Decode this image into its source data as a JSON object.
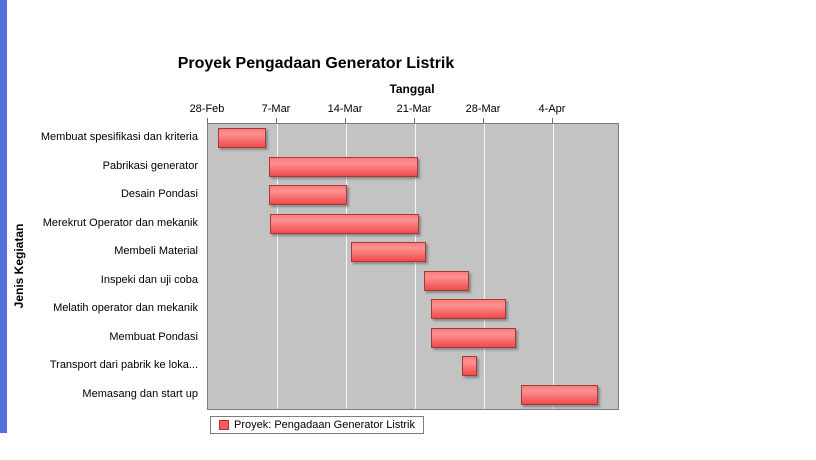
{
  "window": {
    "left_strip_color": "#5272d9"
  },
  "chart": {
    "title": "Proyek Pengadaan Generator Listrik",
    "xlabel": "Tanggal",
    "ylabel": "Jenis Kegiatan",
    "legend": "Proyek: Pengadaan Generator Listrik"
  },
  "chart_data": {
    "type": "gantt",
    "title": "Proyek Pengadaan Generator Listrik",
    "xlabel": "Tanggal",
    "ylabel": "Jenis Kegiatan",
    "legend_position": "bottom",
    "series_name": "Proyek: Pengadaan Generator Listrik",
    "bar_color": "#fa5a5a",
    "plot_background": "#c3c3c3",
    "gridlines": "vertical-white",
    "x_range_days": [
      0,
      41.6
    ],
    "x_ticks": [
      {
        "label": "28-Feb",
        "day": 0
      },
      {
        "label": "7-Mar",
        "day": 7
      },
      {
        "label": "14-Mar",
        "day": 14
      },
      {
        "label": "21-Mar",
        "day": 21
      },
      {
        "label": "28-Mar",
        "day": 28
      },
      {
        "label": "4-Apr",
        "day": 35
      }
    ],
    "tasks": [
      {
        "label": "Membuat spesifikasi dan kriteria",
        "start": "1-Mar",
        "end": "6-Mar",
        "start_day": 1.0,
        "end_day": 5.7
      },
      {
        "label": "Pabrikasi generator",
        "start": "6-Mar",
        "end": "21-Mar",
        "start_day": 6.2,
        "end_day": 21.1
      },
      {
        "label": "Desain Pondasi",
        "start": "6-Mar",
        "end": "14-Mar",
        "start_day": 6.2,
        "end_day": 13.9
      },
      {
        "label": "Merekrut Operator dan mekanik",
        "start": "6-Mar",
        "end": "21-Mar",
        "start_day": 6.3,
        "end_day": 21.2
      },
      {
        "label": "Membeli Material",
        "start": "15-Mar",
        "end": "22-Mar",
        "start_day": 14.5,
        "end_day": 21.9
      },
      {
        "label": "Inspeki dan uji coba",
        "start": "22-Mar",
        "end": "26-Mar",
        "start_day": 21.9,
        "end_day": 26.3
      },
      {
        "label": "Melatih operator dan mekanik",
        "start": "23-Mar",
        "end": "30-Mar",
        "start_day": 22.6,
        "end_day": 30.0
      },
      {
        "label": "Membuat Pondasi",
        "start": "23-Mar",
        "end": "31-Mar",
        "start_day": 22.6,
        "end_day": 31.0
      },
      {
        "label": "Transport dari pabrik ke loka...",
        "start": "26-Mar",
        "end": "27-Mar",
        "start_day": 25.8,
        "end_day": 27.1
      },
      {
        "label": "Memasang dan start up",
        "start": "1-Apr",
        "end": "8-Apr",
        "start_day": 31.8,
        "end_day": 39.4
      }
    ]
  }
}
